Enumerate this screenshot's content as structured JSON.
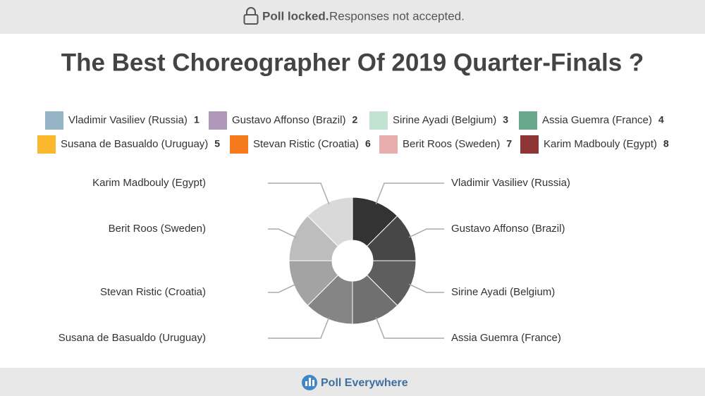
{
  "header": {
    "status": "Poll locked.",
    "message": "Responses not accepted."
  },
  "chart_data": {
    "type": "pie",
    "title": "The Best Choreographer Of 2019 Quarter-Finals ?",
    "categories": [
      "Vladimir Vasiliev (Russia)",
      "Gustavo Affonso (Brazil)",
      "Sirine Ayadi (Belgium)",
      "Assia Guemra (France)",
      "Susana de Basualdo (Uruguay)",
      "Stevan Ristic (Croatia)",
      "Berit Roos (Sweden)",
      "Karim Madbouly (Egypt)"
    ],
    "legend_numbers": [
      1,
      2,
      3,
      4,
      5,
      6,
      7,
      8
    ],
    "legend_colors": [
      "#95b4c6",
      "#ae97b9",
      "#c3e3d2",
      "#6aa88e",
      "#fbb82d",
      "#f57a1c",
      "#e8adad",
      "#8e3535"
    ],
    "values": [
      12.5,
      12.5,
      12.5,
      12.5,
      12.5,
      12.5,
      12.5,
      12.5
    ],
    "colors": [
      "#333333",
      "#474747",
      "#5e5e5e",
      "#707070",
      "#858585",
      "#a3a3a3",
      "#bdbdbd",
      "#d9d9d9"
    ],
    "donut": true
  },
  "footer": {
    "brand": "Poll Everywhere"
  }
}
